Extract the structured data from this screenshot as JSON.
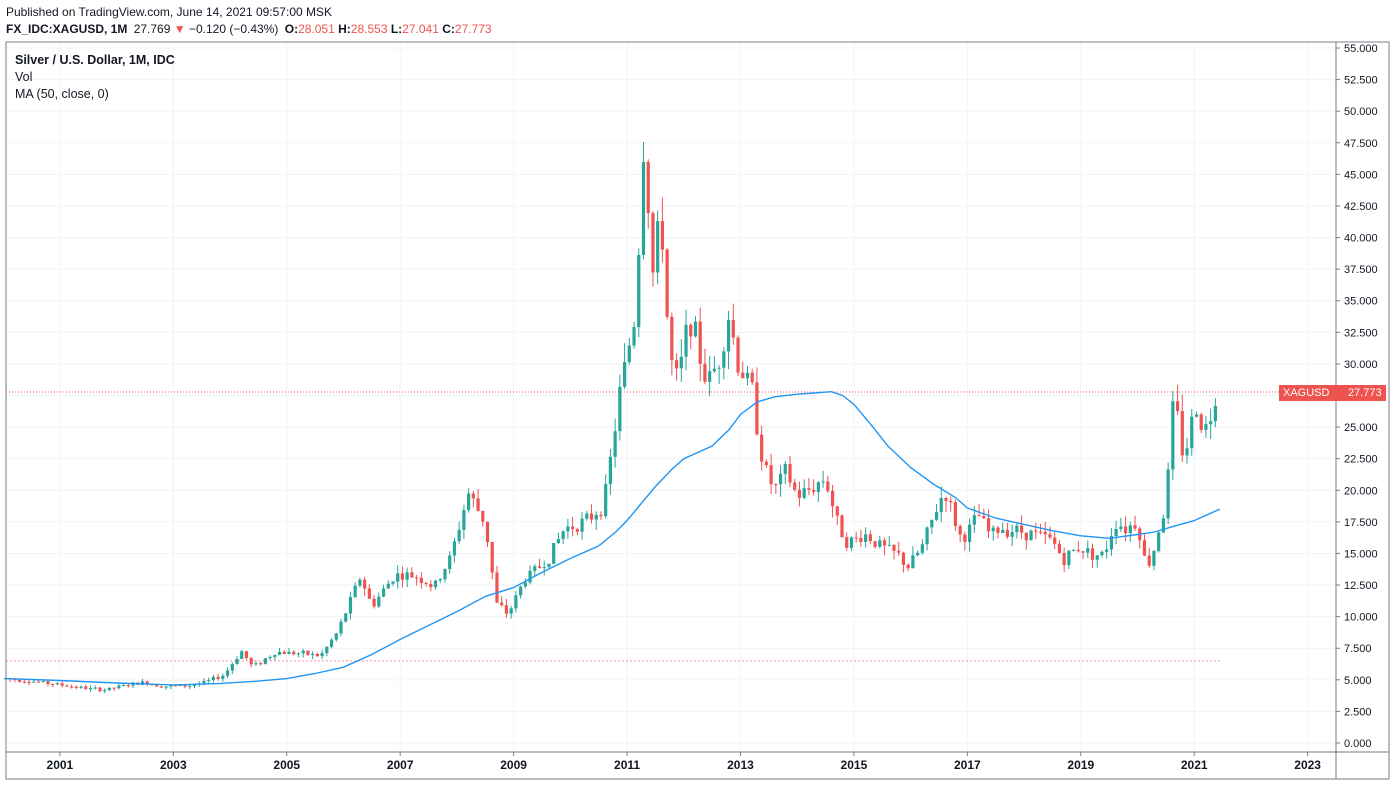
{
  "header": {
    "published": "Published on TradingView.com, June 14, 2021 09:57:00 MSK",
    "symbol": "FX_IDC:XAGUSD, 1M",
    "last": "27.769",
    "change_arrow": "▼",
    "change": "−0.120 (−0.43%)",
    "o_label": "O:",
    "o_val": "28.051",
    "h_label": "H:",
    "h_val": "28.553",
    "l_label": "L:",
    "l_val": "27.041",
    "c_label": "C:",
    "c_val": "27.773"
  },
  "legend": {
    "title": "Silver / U.S. Dollar, 1M, IDC",
    "vol": "Vol",
    "ma": "MA (50, close, 0)"
  },
  "price_tag": {
    "symbol": "XAGUSD",
    "value": "27.773"
  },
  "colors": {
    "up": "#26a69a",
    "down": "#ef5350",
    "ma": "#2196f3",
    "grid": "#f0f3fa"
  },
  "chart_data": {
    "type": "candlestick",
    "title": "Silver / U.S. Dollar, 1M, IDC",
    "ylim": [
      0,
      55
    ],
    "y_ticks": [
      "0.000",
      "2.500",
      "5.000",
      "7.500",
      "10.000",
      "12.500",
      "15.000",
      "17.500",
      "20.000",
      "22.500",
      "25.000",
      "27.500",
      "30.000",
      "32.500",
      "35.000",
      "37.500",
      "40.000",
      "42.500",
      "45.000",
      "47.500",
      "50.000",
      "52.500",
      "55.000"
    ],
    "x_ticks": [
      "2001",
      "2003",
      "2005",
      "2007",
      "2009",
      "2011",
      "2013",
      "2015",
      "2017",
      "2019",
      "2021",
      "2023"
    ],
    "xlim": [
      2000.05,
      2023.5
    ],
    "last_price": 27.773,
    "reference_line": 6.5,
    "close_anchors": [
      [
        2000.04,
        5.1
      ],
      [
        2000.5,
        4.9
      ],
      [
        2001.0,
        4.6
      ],
      [
        2001.5,
        4.3
      ],
      [
        2001.8,
        4.2
      ],
      [
        2002.2,
        4.6
      ],
      [
        2002.5,
        4.8
      ],
      [
        2002.8,
        4.5
      ],
      [
        2003.2,
        4.5
      ],
      [
        2003.5,
        4.7
      ],
      [
        2003.9,
        5.4
      ],
      [
        2004.2,
        7.3
      ],
      [
        2004.4,
        6.0
      ],
      [
        2004.8,
        7.2
      ],
      [
        2005.2,
        7.1
      ],
      [
        2005.6,
        6.9
      ],
      [
        2005.9,
        8.8
      ],
      [
        2006.3,
        13.2
      ],
      [
        2006.5,
        10.8
      ],
      [
        2006.9,
        13.3
      ],
      [
        2007.3,
        13.2
      ],
      [
        2007.6,
        12.3
      ],
      [
        2007.9,
        14.8
      ],
      [
        2008.2,
        19.8
      ],
      [
        2008.5,
        17.4
      ],
      [
        2008.7,
        11.0
      ],
      [
        2008.9,
        10.2
      ],
      [
        2009.2,
        13.0
      ],
      [
        2009.6,
        14.5
      ],
      [
        2009.9,
        17.0
      ],
      [
        2010.3,
        17.6
      ],
      [
        2010.6,
        19.0
      ],
      [
        2010.9,
        28.5
      ],
      [
        2011.15,
        34.0
      ],
      [
        2011.3,
        48.0
      ],
      [
        2011.45,
        37.0
      ],
      [
        2011.6,
        41.8
      ],
      [
        2011.75,
        30.5
      ],
      [
        2011.9,
        28.5
      ],
      [
        2012.1,
        34.0
      ],
      [
        2012.4,
        28.5
      ],
      [
        2012.6,
        30.0
      ],
      [
        2012.8,
        34.0
      ],
      [
        2012.95,
        30.0
      ],
      [
        2013.2,
        28.0
      ],
      [
        2013.4,
        22.0
      ],
      [
        2013.6,
        20.0
      ],
      [
        2013.8,
        21.5
      ],
      [
        2014.0,
        19.5
      ],
      [
        2014.2,
        20.0
      ],
      [
        2014.5,
        21.0
      ],
      [
        2014.7,
        17.5
      ],
      [
        2014.9,
        15.8
      ],
      [
        2015.2,
        16.5
      ],
      [
        2015.5,
        15.5
      ],
      [
        2015.8,
        14.8
      ],
      [
        2015.95,
        13.9
      ],
      [
        2016.2,
        15.5
      ],
      [
        2016.5,
        19.0
      ],
      [
        2016.6,
        20.0
      ],
      [
        2016.9,
        16.0
      ],
      [
        2017.2,
        18.0
      ],
      [
        2017.4,
        16.5
      ],
      [
        2017.6,
        17.0
      ],
      [
        2017.9,
        16.8
      ],
      [
        2018.2,
        16.5
      ],
      [
        2018.5,
        16.0
      ],
      [
        2018.7,
        14.5
      ],
      [
        2018.95,
        15.5
      ],
      [
        2019.2,
        15.0
      ],
      [
        2019.4,
        14.8
      ],
      [
        2019.6,
        17.5
      ],
      [
        2019.8,
        17.0
      ],
      [
        2020.0,
        17.5
      ],
      [
        2020.15,
        14.0
      ],
      [
        2020.25,
        14.5
      ],
      [
        2020.4,
        17.5
      ],
      [
        2020.5,
        18.5
      ],
      [
        2020.58,
        24.0
      ],
      [
        2020.66,
        28.5
      ],
      [
        2020.75,
        23.0
      ],
      [
        2020.9,
        23.8
      ],
      [
        2021.0,
        26.5
      ],
      [
        2021.08,
        26.5
      ],
      [
        2021.17,
        24.5
      ],
      [
        2021.3,
        26.0
      ],
      [
        2021.38,
        27.8
      ],
      [
        2021.45,
        27.77
      ]
    ],
    "ma_series": {
      "name": "MA (50, close, 0)",
      "points": [
        [
          2000.04,
          5.1
        ],
        [
          2001.0,
          4.95
        ],
        [
          2002.0,
          4.75
        ],
        [
          2003.0,
          4.6
        ],
        [
          2003.8,
          4.7
        ],
        [
          2004.5,
          4.9
        ],
        [
          2005.0,
          5.1
        ],
        [
          2005.5,
          5.5
        ],
        [
          2006.0,
          6.0
        ],
        [
          2006.5,
          7.0
        ],
        [
          2007.0,
          8.2
        ],
        [
          2007.5,
          9.3
        ],
        [
          2008.0,
          10.4
        ],
        [
          2008.5,
          11.6
        ],
        [
          2009.0,
          12.3
        ],
        [
          2009.5,
          13.5
        ],
        [
          2010.0,
          14.6
        ],
        [
          2010.5,
          15.6
        ],
        [
          2010.8,
          16.7
        ],
        [
          2011.0,
          17.6
        ],
        [
          2011.5,
          20.3
        ],
        [
          2011.8,
          21.7
        ],
        [
          2012.0,
          22.5
        ],
        [
          2012.5,
          23.5
        ],
        [
          2012.8,
          24.8
        ],
        [
          2013.0,
          26.0
        ],
        [
          2013.3,
          27.0
        ],
        [
          2013.6,
          27.4
        ],
        [
          2014.0,
          27.6
        ],
        [
          2014.3,
          27.7
        ],
        [
          2014.6,
          27.8
        ],
        [
          2014.8,
          27.5
        ],
        [
          2015.0,
          26.8
        ],
        [
          2015.3,
          25.2
        ],
        [
          2015.6,
          23.5
        ],
        [
          2016.0,
          21.8
        ],
        [
          2016.4,
          20.5
        ],
        [
          2016.8,
          19.4
        ],
        [
          2017.0,
          18.6
        ],
        [
          2017.5,
          17.8
        ],
        [
          2018.0,
          17.3
        ],
        [
          2018.5,
          16.8
        ],
        [
          2019.0,
          16.4
        ],
        [
          2019.5,
          16.2
        ],
        [
          2020.0,
          16.5
        ],
        [
          2020.3,
          16.7
        ],
        [
          2020.6,
          17.1
        ],
        [
          2021.0,
          17.6
        ],
        [
          2021.45,
          18.5
        ]
      ]
    },
    "price_axis": "right",
    "grid": true
  }
}
